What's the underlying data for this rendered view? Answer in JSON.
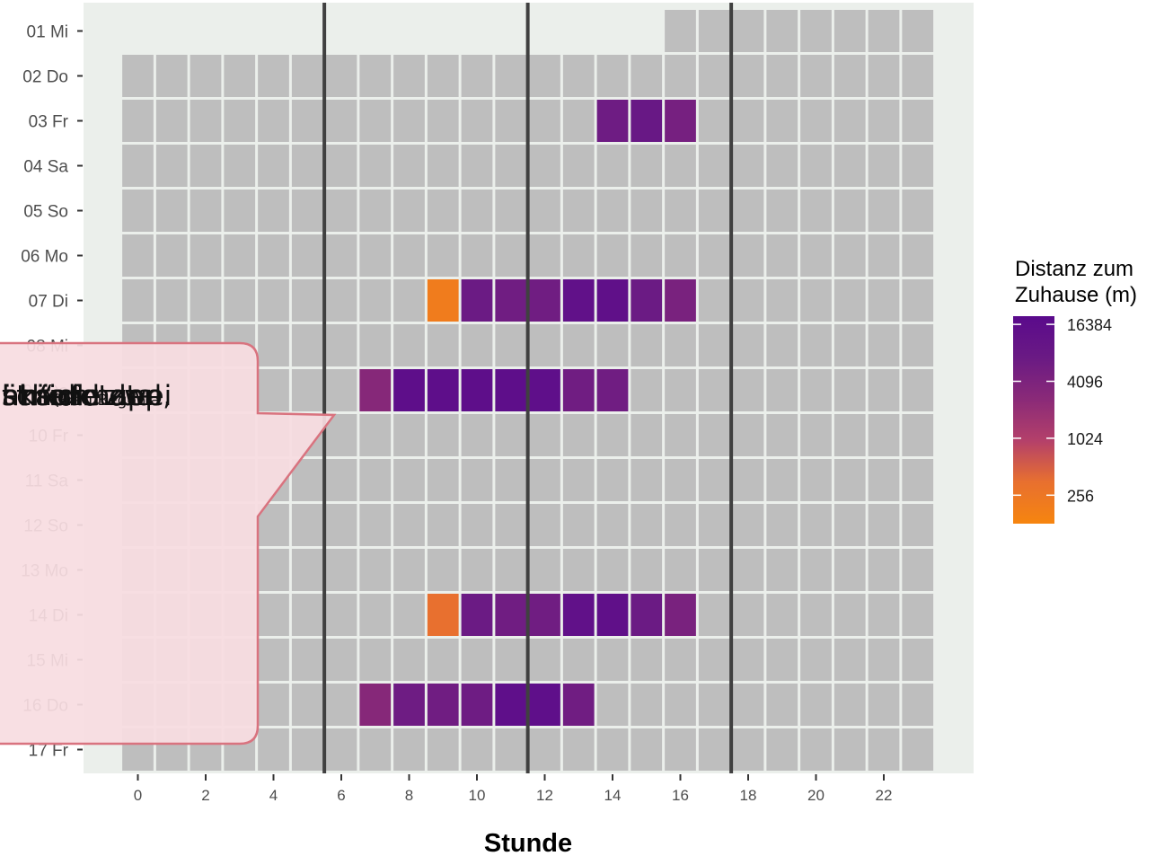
{
  "chart_data": {
    "type": "heatmap",
    "title": "",
    "xlabel": "Stunde",
    "ylabel": "",
    "x_ticks": [
      0,
      2,
      4,
      6,
      8,
      10,
      12,
      14,
      16,
      18,
      20,
      22
    ],
    "x_range": [
      -0.5,
      23.5
    ],
    "y_labels": [
      "01 Mi",
      "02 Do",
      "03 Fr",
      "04 Sa",
      "05 So",
      "06 Mo",
      "07 Di",
      "08 Mi",
      "09 Do",
      "10 Fr",
      "11 Sa",
      "12 So",
      "13 Mo",
      "14 Di",
      "15 Mi",
      "16 Do",
      "17 Fr"
    ],
    "vertical_lines_at": [
      5.5,
      11.5,
      17.5
    ],
    "first_day_start_hour": 16,
    "missing_color": "#bebebe",
    "colored_cells": [
      {
        "day": "03 Fr",
        "hour": 14,
        "distance_m": 6500
      },
      {
        "day": "03 Fr",
        "hour": 15,
        "distance_m": 8500
      },
      {
        "day": "03 Fr",
        "hour": 16,
        "distance_m": 5000
      },
      {
        "day": "07 Di",
        "hour": 9,
        "distance_m": 200
      },
      {
        "day": "07 Di",
        "hour": 10,
        "distance_m": 7000
      },
      {
        "day": "07 Di",
        "hour": 11,
        "distance_m": 6000
      },
      {
        "day": "07 Di",
        "hour": 12,
        "distance_m": 6000
      },
      {
        "day": "07 Di",
        "hour": 13,
        "distance_m": 13000
      },
      {
        "day": "07 Di",
        "hour": 14,
        "distance_m": 14000
      },
      {
        "day": "07 Di",
        "hour": 15,
        "distance_m": 7000
      },
      {
        "day": "07 Di",
        "hour": 16,
        "distance_m": 4500
      },
      {
        "day": "09 Do",
        "hour": 7,
        "distance_m": 3000
      },
      {
        "day": "09 Do",
        "hour": 8,
        "distance_m": 16000
      },
      {
        "day": "09 Do",
        "hour": 9,
        "distance_m": 16000
      },
      {
        "day": "09 Do",
        "hour": 10,
        "distance_m": 16000
      },
      {
        "day": "09 Do",
        "hour": 11,
        "distance_m": 16000
      },
      {
        "day": "09 Do",
        "hour": 12,
        "distance_m": 15000
      },
      {
        "day": "09 Do",
        "hour": 13,
        "distance_m": 6000
      },
      {
        "day": "09 Do",
        "hour": 14,
        "distance_m": 6000
      },
      {
        "day": "14 Di",
        "hour": 9,
        "distance_m": 350
      },
      {
        "day": "14 Di",
        "hour": 10,
        "distance_m": 7000
      },
      {
        "day": "14 Di",
        "hour": 11,
        "distance_m": 6000
      },
      {
        "day": "14 Di",
        "hour": 12,
        "distance_m": 6000
      },
      {
        "day": "14 Di",
        "hour": 13,
        "distance_m": 13000
      },
      {
        "day": "14 Di",
        "hour": 14,
        "distance_m": 14000
      },
      {
        "day": "14 Di",
        "hour": 15,
        "distance_m": 7000
      },
      {
        "day": "14 Di",
        "hour": 16,
        "distance_m": 4500
      },
      {
        "day": "16 Do",
        "hour": 7,
        "distance_m": 3000
      },
      {
        "day": "16 Do",
        "hour": 8,
        "distance_m": 6500
      },
      {
        "day": "16 Do",
        "hour": 9,
        "distance_m": 6000
      },
      {
        "day": "16 Do",
        "hour": 10,
        "distance_m": 6500
      },
      {
        "day": "16 Do",
        "hour": 11,
        "distance_m": 15000
      },
      {
        "day": "16 Do",
        "hour": 12,
        "distance_m": 15000
      },
      {
        "day": "16 Do",
        "hour": 13,
        "distance_m": 6000
      }
    ],
    "legend": {
      "title_line1": "Distanz zum",
      "title_line2": "Zuhause (m)",
      "placement": "right",
      "scale": "log",
      "range": [
        128,
        20000
      ],
      "breaks": [
        16384,
        4096,
        1024,
        256
      ],
      "break_labels": [
        "16384",
        "4096",
        "1024",
        "256"
      ],
      "colors": [
        "#5a0a8c",
        "#6a1a84",
        "#8a2a78",
        "#b4406a",
        "#e8702f",
        "#f6850f"
      ]
    }
  },
  "callout": {
    "lines": [
      "ährend der",
      "t mich total",
      "st so knapp,",
      "sch die zwei",
      "nkäufe zu",
      "ht.“"
    ],
    "source": "(Frau Begonia",
    "fill": "#f8dde1",
    "stroke": "#d9737f"
  }
}
